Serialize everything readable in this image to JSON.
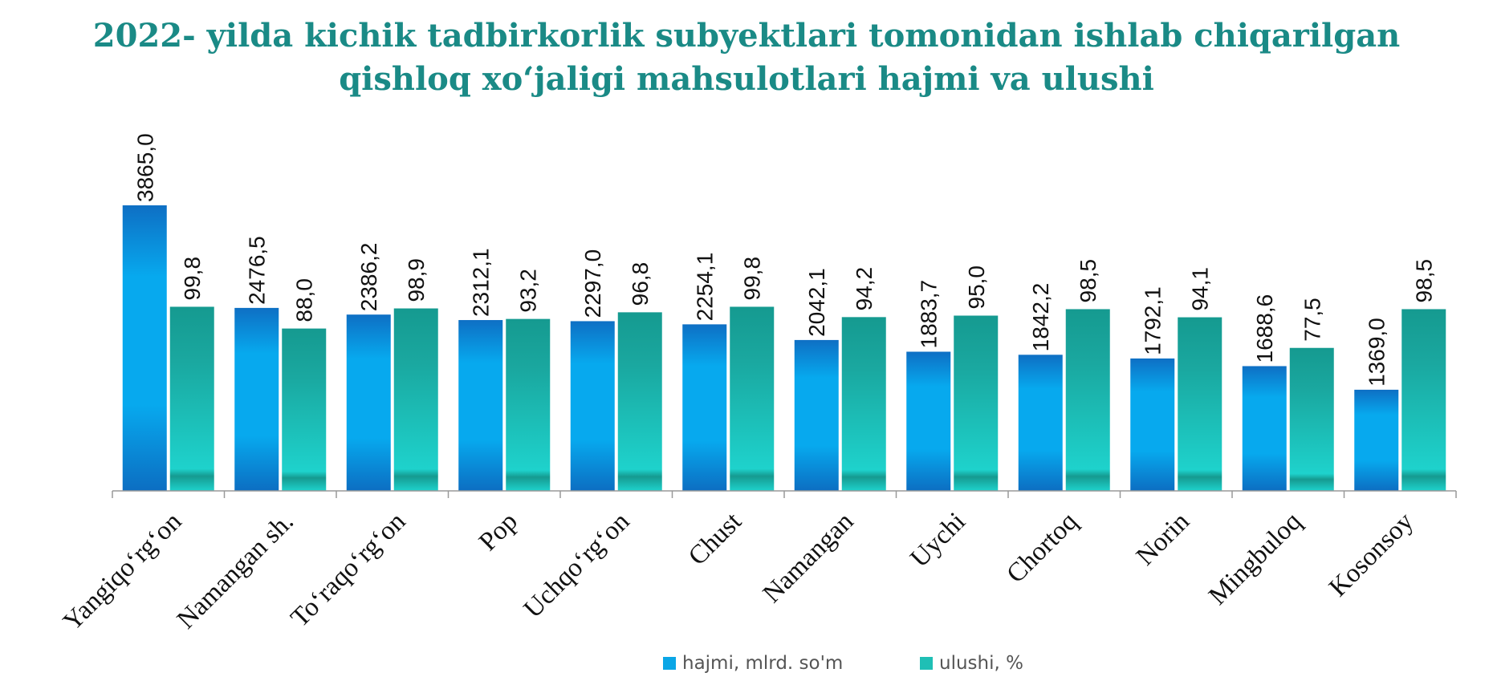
{
  "chart_data": {
    "type": "bar",
    "title_lines": [
      "2022- yilda kichik tadbirkorlik subyektlari tomonidan ishlab chiqarilgan",
      "qishloq xo‘jaligi mahsulotlari hajmi va ulushi"
    ],
    "categories": [
      "Yangiqo‘rg‘on",
      "Namangan sh.",
      "To‘raqo‘rg‘on",
      "Pop",
      "Uchqo‘rg‘on",
      "Chust",
      "Namangan",
      "Uychi",
      "Chortoq",
      "Norin",
      "Mingbuloq",
      "Kosonsoy"
    ],
    "series": [
      {
        "name": "hajmi, mlrd. so'm",
        "values": [
          3865.0,
          2476.5,
          2386.2,
          2312.1,
          2297.0,
          2254.1,
          2042.1,
          1883.7,
          1842.2,
          1792.1,
          1688.6,
          1369.0
        ],
        "labels": [
          "3865,0",
          "2476,5",
          "2386,2",
          "2312,1",
          "2297,0",
          "2254,1",
          "2042,1",
          "1883,7",
          "1842,2",
          "1792,1",
          "1688,6",
          "1369,0"
        ],
        "color": "#0aa6e6"
      },
      {
        "name": "ulushi, %",
        "values": [
          99.8,
          88.0,
          98.9,
          93.2,
          96.8,
          99.8,
          94.2,
          95.0,
          98.5,
          94.1,
          77.5,
          98.5
        ],
        "labels": [
          "99,8",
          "88,0",
          "98,9",
          "93,2",
          "96,8",
          "99,8",
          "94,2",
          "95,0",
          "98,5",
          "94,1",
          "77,5",
          "98,5"
        ],
        "color": "#1fbfb5"
      }
    ],
    "legend_position": "bottom",
    "grid": false
  }
}
